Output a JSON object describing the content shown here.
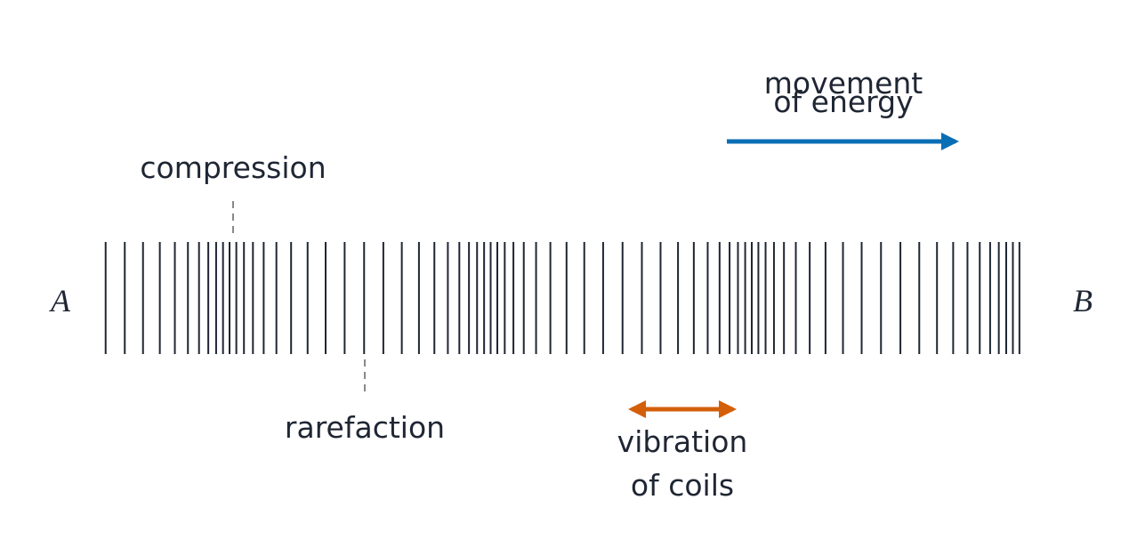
{
  "labels": {
    "energy": [
      "movement",
      "of energy"
    ],
    "compression": "compression",
    "rarefaction": "rarefaction",
    "vibration": [
      "vibration",
      "of coils"
    ],
    "end_a": "A",
    "end_b": "B"
  }
}
